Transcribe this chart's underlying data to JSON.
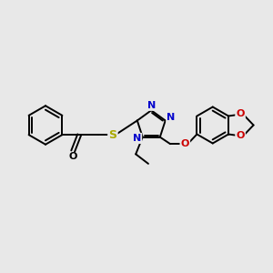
{
  "bg_color": "#e8e8e8",
  "bond_color": "#000000",
  "n_color": "#0000cc",
  "o_color": "#cc0000",
  "s_color": "#aaaa00",
  "lw": 1.4,
  "xlim": [
    0,
    12
  ],
  "ylim": [
    0,
    9
  ],
  "figsize": [
    3.0,
    3.0
  ],
  "dpi": 100
}
